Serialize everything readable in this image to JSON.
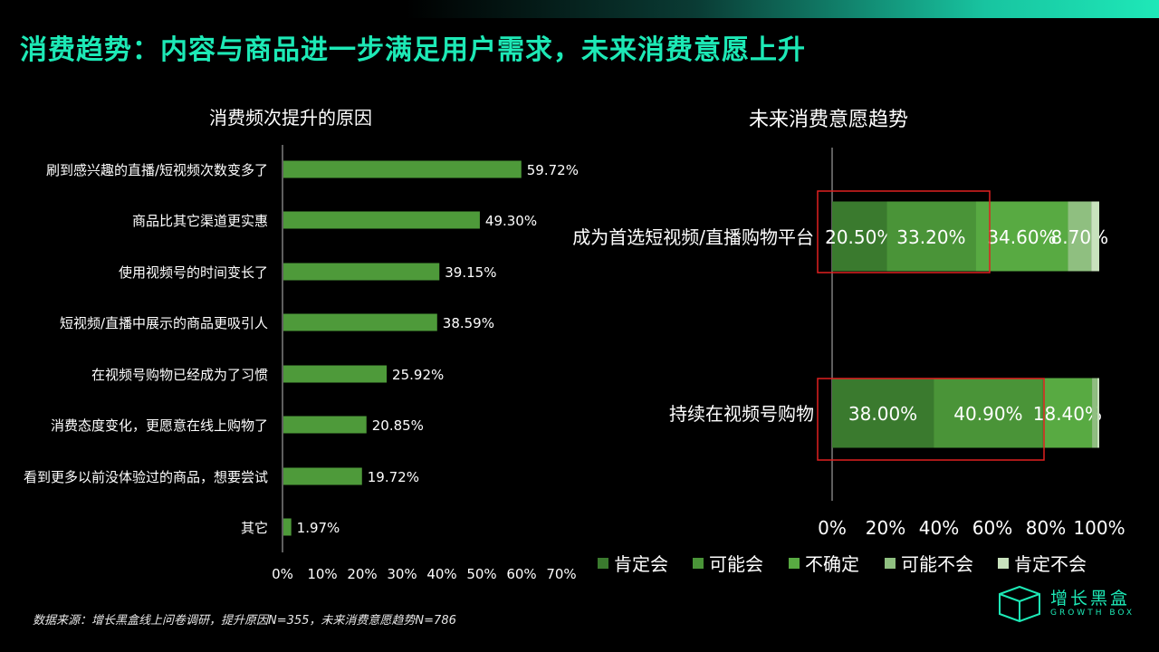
{
  "page": {
    "title": "消费趋势：内容与商品进一步满足用户需求，未来消费意愿上升",
    "source": "数据来源：增长黑盒线上问卷调研，提升原因N=355，未来消费意愿趋势N=786",
    "logo": {
      "cn": "增长黑盒",
      "en": "GROWTH BOX"
    }
  },
  "colors": {
    "accent": "#1de9b6",
    "bar": "#4e9a3a",
    "highlight_box": "#e02020"
  },
  "chart_data": [
    {
      "type": "bar",
      "orientation": "horizontal",
      "title": "消费频次提升的原因",
      "categories": [
        "刷到感兴趣的直播/短视频次数变多了",
        "商品比其它渠道更实惠",
        "使用视频号的时间变长了",
        "短视频/直播中展示的商品更吸引人",
        "在视频号购物已经成为了习惯",
        "消费态度变化，更愿意在线上购物了",
        "看到更多以前没体验过的商品，想要尝试",
        "其它"
      ],
      "values": [
        59.72,
        49.3,
        39.15,
        38.59,
        25.92,
        20.85,
        19.72,
        1.97
      ],
      "value_labels": [
        "59.72%",
        "49.30%",
        "39.15%",
        "38.59%",
        "25.92%",
        "20.85%",
        "19.72%",
        "1.97%"
      ],
      "xlim": [
        0,
        70
      ],
      "ticks": [
        "0%",
        "10%",
        "20%",
        "30%",
        "40%",
        "50%",
        "60%",
        "70%"
      ]
    },
    {
      "type": "bar",
      "orientation": "horizontal",
      "stacked": "percent",
      "title": "未来消费意愿趋势",
      "categories": [
        "成为首选短视频/直播购物平台",
        "持续在视频号购物"
      ],
      "series": [
        {
          "name": "肯定会",
          "color": "#3a7a2e",
          "values": [
            20.5,
            38.0
          ],
          "labels": [
            "20.50%",
            "38.00%"
          ]
        },
        {
          "name": "可能会",
          "color": "#4a9438",
          "values": [
            33.2,
            40.9
          ],
          "labels": [
            "33.20%",
            "40.90%"
          ]
        },
        {
          "name": "不确定",
          "color": "#58aa42",
          "values": [
            34.6,
            18.4
          ],
          "labels": [
            "34.60%",
            "18.40%"
          ]
        },
        {
          "name": "可能不会",
          "color": "#8fbf80",
          "values": [
            8.7,
            2.0
          ],
          "labels": [
            "8.70%",
            ""
          ]
        },
        {
          "name": "肯定不会",
          "color": "#c8e2bd",
          "values": [
            3.0,
            0.7
          ],
          "labels": [
            "",
            ""
          ]
        }
      ],
      "xlim": [
        0,
        100
      ],
      "ticks": [
        "0%",
        "20%",
        "40%",
        "60%",
        "80%",
        "100%"
      ],
      "legend": "bottom"
    }
  ]
}
